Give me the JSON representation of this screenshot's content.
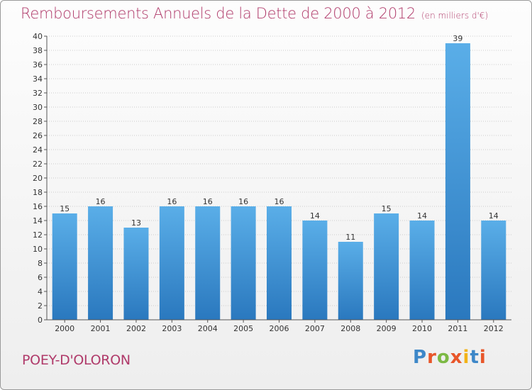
{
  "header": {
    "title": "Remboursements Annuels de la Dette de 2000 à 2012",
    "subtitle": "(en milliers d'€)"
  },
  "footer": {
    "city": "POEY-D'OLORON",
    "logo_text": "Proxiti",
    "logo_colors": [
      "#3d87c8",
      "#e8562a",
      "#7cb944",
      "#e8562a",
      "#f2b318",
      "#3d87c8",
      "#e8562a"
    ]
  },
  "colors": {
    "title": "#b03a6a",
    "bar_top": "#5aaee8",
    "bar_bottom": "#2a78be",
    "grid": "#cccccc",
    "axis": "#555555"
  },
  "chart_data": {
    "type": "bar",
    "title": "Remboursements Annuels de la Dette de 2000 à 2012",
    "subtitle": "(en milliers d'€)",
    "xlabel": "",
    "ylabel": "",
    "categories": [
      "2000",
      "2001",
      "2002",
      "2003",
      "2004",
      "2005",
      "2006",
      "2007",
      "2008",
      "2009",
      "2010",
      "2011",
      "2012"
    ],
    "values": [
      15,
      16,
      13,
      16,
      16,
      16,
      16,
      14,
      11,
      15,
      14,
      39,
      14
    ],
    "ylim": [
      0,
      40
    ],
    "yticks": [
      0,
      2,
      4,
      6,
      8,
      10,
      12,
      14,
      16,
      18,
      20,
      22,
      24,
      26,
      28,
      30,
      32,
      34,
      36,
      38,
      40
    ],
    "grid": true,
    "legend": "none"
  }
}
